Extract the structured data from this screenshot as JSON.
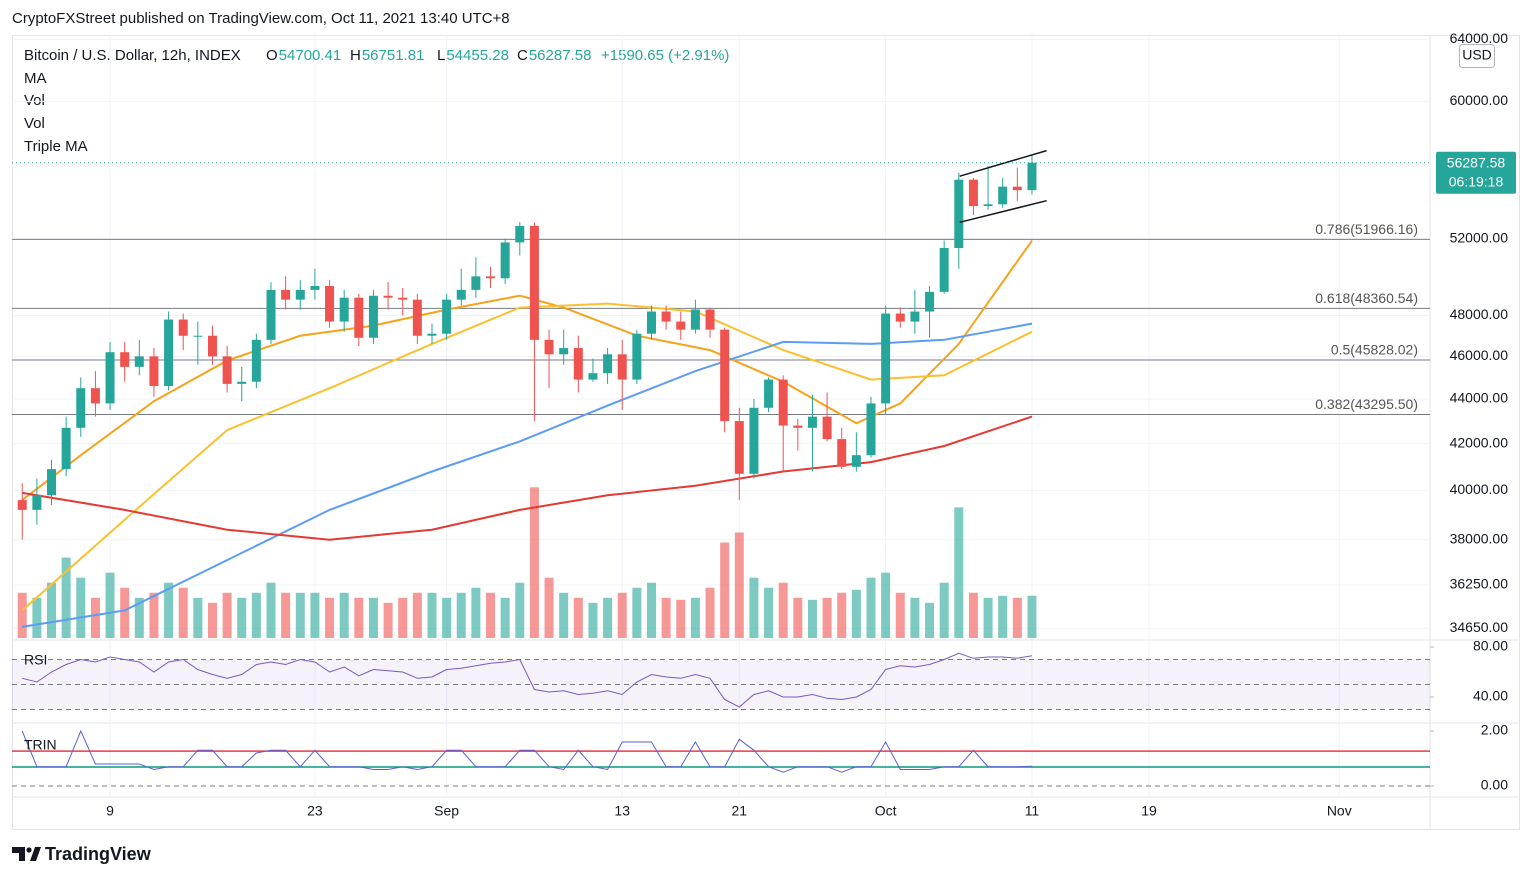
{
  "header": {
    "byline": "CryptoFXStreet published on TradingView.com, Oct 11, 2021 13:40 UTC+8"
  },
  "chart_data": [
    {
      "type": "candlestick",
      "legend": {
        "symbol": "Bitcoin / U.S. Dollar, 12h, INDEX",
        "items": [
          {
            "label": "O",
            "value": 54700.41
          },
          {
            "label": "H",
            "value": 56751.81
          },
          {
            "label": "L",
            "value": 54455.28
          },
          {
            "label": "C",
            "value": 56287.58
          }
        ],
        "change": "+1590.65 (+2.91%)"
      },
      "indicators": [
        "MA",
        "Vol",
        "Vol",
        "Triple MA"
      ],
      "unit": "USD",
      "countdown": "06:19:18",
      "log_scale": true,
      "grid": true,
      "up_color": "#26a69a",
      "down_color": "#ef5350",
      "xlim": [
        2.3,
        99.2
      ],
      "xticks": [
        9,
        23,
        {
          "value": 32,
          "label": "Sep"
        },
        {
          "value": 44,
          "label": "13"
        },
        {
          "value": 52,
          "label": "21"
        },
        {
          "value": 62,
          "label": "Oct"
        },
        {
          "value": 72,
          "label": "11"
        },
        {
          "value": 80,
          "label": "19"
        },
        {
          "value": 93,
          "label": "Nov"
        }
      ],
      "ylim": [
        34300,
        64300
      ],
      "yticks": [
        {
          "value": 64000,
          "label": "64000.00"
        },
        {
          "value": 60000,
          "label": "60000.00"
        },
        {
          "value": 52000,
          "label": "52000.00"
        },
        {
          "value": 48000,
          "label": "48000.00"
        },
        {
          "value": 46000,
          "label": "46000.00"
        },
        {
          "value": 44000,
          "label": "44000.00"
        },
        {
          "value": 42000,
          "label": "42000.00"
        },
        {
          "value": 40000,
          "label": "40000.00"
        },
        {
          "value": 38000,
          "label": "38000.00"
        },
        {
          "value": 36250,
          "label": "36250.00"
        },
        {
          "value": 34650,
          "label": "34650.00"
        }
      ],
      "x": [
        3,
        4,
        5,
        6,
        7,
        8,
        9,
        10,
        11,
        12,
        13,
        14,
        15,
        16,
        17,
        18,
        19,
        20,
        21,
        22,
        23,
        24,
        25,
        26,
        27,
        28,
        29,
        30,
        31,
        32,
        33,
        34,
        35,
        36,
        37,
        38,
        39,
        40,
        41,
        42,
        43,
        44,
        45,
        46,
        47,
        48,
        49,
        50,
        51,
        52,
        53,
        54,
        55,
        56,
        57,
        58,
        59,
        60,
        61,
        62,
        63,
        64,
        65,
        66,
        67,
        68,
        69,
        70,
        71,
        72
      ],
      "open": [
        39600,
        39200,
        39800,
        40900,
        42700,
        44500,
        43800,
        46200,
        45500,
        46000,
        44600,
        47800,
        47000,
        47000,
        46000,
        44700,
        44800,
        46800,
        49300,
        48800,
        49300,
        49500,
        47700,
        48900,
        46900,
        49000,
        48900,
        48800,
        47000,
        47100,
        48800,
        49300,
        50000,
        49900,
        51800,
        52700,
        46800,
        46100,
        46400,
        44900,
        45200,
        46100,
        44900,
        47100,
        48200,
        47700,
        47300,
        48300,
        47300,
        43000,
        40700,
        43600,
        44900,
        42800,
        42700,
        43200,
        42200,
        41000,
        41500,
        43800,
        48100,
        47700,
        48200,
        49200,
        51500,
        55300,
        53800,
        53900,
        54900,
        54700.41
      ],
      "high": [
        40300,
        40500,
        41300,
        43200,
        45000,
        45300,
        46700,
        46700,
        46800,
        46400,
        48200,
        48100,
        47700,
        47500,
        46500,
        45500,
        47100,
        49700,
        50000,
        49800,
        50400,
        49800,
        49300,
        49100,
        49300,
        49700,
        49400,
        49100,
        47600,
        49100,
        50400,
        51000,
        50500,
        52000,
        52900,
        52900,
        47300,
        47300,
        47000,
        45900,
        46400,
        46800,
        47300,
        48500,
        48500,
        48200,
        48800,
        48400,
        47400,
        43600,
        44000,
        45000,
        45100,
        43100,
        44200,
        44300,
        42700,
        42500,
        44100,
        48500,
        48400,
        49300,
        49500,
        51900,
        55700,
        55400,
        56100,
        55400,
        56000,
        56751.81
      ],
      "low": [
        38000,
        38600,
        39400,
        40600,
        42300,
        43200,
        43500,
        44800,
        45100,
        44100,
        44400,
        46300,
        45600,
        45600,
        44300,
        43900,
        44500,
        46600,
        48300,
        48300,
        48800,
        47400,
        47200,
        46500,
        46600,
        48300,
        48000,
        46600,
        46600,
        46800,
        48500,
        48900,
        49400,
        49600,
        51100,
        43000,
        44500,
        45600,
        44300,
        44800,
        44700,
        43500,
        44700,
        46800,
        47300,
        46800,
        47100,
        46900,
        42500,
        39600,
        40500,
        43400,
        40800,
        41700,
        40800,
        42100,
        40900,
        40800,
        41400,
        43300,
        47400,
        47100,
        46900,
        49100,
        50400,
        53300,
        53600,
        53700,
        54100,
        54455.28
      ],
      "close": [
        39200,
        39800,
        40900,
        42700,
        44500,
        43800,
        46200,
        45500,
        46000,
        44600,
        47800,
        47000,
        47000,
        46000,
        44700,
        44800,
        46800,
        49300,
        48800,
        49300,
        49500,
        47700,
        48900,
        46900,
        49000,
        48900,
        48800,
        47000,
        47100,
        48800,
        49300,
        50000,
        49900,
        51800,
        52700,
        46800,
        46100,
        46400,
        44900,
        45200,
        46100,
        44900,
        47100,
        48200,
        47700,
        47300,
        48300,
        47300,
        43000,
        40700,
        43600,
        44900,
        42800,
        42700,
        43200,
        42200,
        41000,
        41500,
        43800,
        48100,
        47700,
        48200,
        49200,
        51500,
        55300,
        53800,
        53900,
        54900,
        54700.41,
        56287.58
      ],
      "volume": {
        "lim": [
          0,
          600
        ],
        "values": [
          45,
          40,
          55,
          80,
          60,
          40,
          65,
          50,
          40,
          45,
          55,
          50,
          40,
          35,
          45,
          40,
          45,
          55,
          45,
          45,
          45,
          40,
          45,
          40,
          40,
          35,
          40,
          45,
          45,
          40,
          45,
          50,
          45,
          40,
          55,
          150,
          60,
          45,
          40,
          35,
          40,
          45,
          50,
          55,
          40,
          38,
          40,
          50,
          95,
          105,
          60,
          50,
          55,
          40,
          38,
          40,
          45,
          48,
          60,
          65,
          45,
          40,
          35,
          55,
          130,
          45,
          40,
          42,
          40,
          42
        ]
      },
      "ma_lines": [
        {
          "color": "#f7a21b",
          "x": [
            3,
            7,
            12,
            17,
            22,
            27,
            32,
            37,
            40,
            45,
            50,
            55,
            60,
            63,
            67,
            72
          ],
          "values": [
            39600,
            41500,
            43900,
            45800,
            47000,
            47500,
            48300,
            49000,
            48400,
            47000,
            46300,
            44800,
            42900,
            43800,
            46600,
            51900
          ]
        },
        {
          "color": "#fbc02d",
          "x": [
            3,
            10,
            17,
            24,
            31,
            37,
            43,
            49,
            55,
            61,
            66,
            72
          ],
          "values": [
            35300,
            38800,
            42600,
            44500,
            46600,
            48400,
            48600,
            48200,
            46300,
            44900,
            45100,
            47200
          ]
        },
        {
          "color": "#5b9cf6",
          "x": [
            3,
            10,
            17,
            24,
            31,
            37,
            43,
            49,
            55,
            61,
            66,
            72
          ],
          "values": [
            34700,
            35300,
            37200,
            39200,
            40800,
            42100,
            43700,
            45300,
            46700,
            46600,
            46800,
            47600
          ]
        },
        {
          "color": "#e53935",
          "x": [
            3,
            10,
            17,
            24,
            31,
            37,
            43,
            49,
            55,
            61,
            66,
            72
          ],
          "values": [
            39900,
            39200,
            38400,
            38000,
            38400,
            39200,
            39800,
            40200,
            40800,
            41200,
            41900,
            43200
          ]
        }
      ],
      "fib_levels": [
        {
          "value": 51966.16,
          "label": "0.786(51966.16)"
        },
        {
          "value": 48360.54,
          "label": "0.618(48360.54)"
        },
        {
          "value": 45828.02,
          "label": "0.5(45828.02)"
        },
        {
          "value": 43295.5,
          "label": "0.382(43295.50)"
        }
      ],
      "channel": [
        {
          "x": [
            67.06,
            73.0
          ],
          "values": [
            55500,
            57000
          ]
        },
        {
          "x": [
            67.06,
            73.0
          ],
          "values": [
            52900,
            54100
          ]
        }
      ]
    },
    {
      "type": "line",
      "title": "RSI",
      "color": "#7e57c2",
      "ylim": [
        20,
        85.6
      ],
      "yticks": [
        {
          "value": 80,
          "label": "80.00"
        },
        {
          "value": 40,
          "label": "40.00"
        }
      ],
      "band": [
        30,
        70
      ],
      "levels": [
        70,
        50,
        30
      ],
      "values": [
        55,
        52,
        60,
        66,
        70,
        68,
        72,
        70,
        68,
        60,
        68,
        70,
        62,
        58,
        55,
        58,
        66,
        68,
        66,
        70,
        68,
        60,
        64,
        57,
        62,
        61,
        60,
        55,
        56,
        62,
        63,
        65,
        67,
        68,
        70,
        46,
        44,
        45,
        42,
        43,
        45,
        42,
        52,
        58,
        56,
        55,
        58,
        55,
        38,
        32,
        42,
        45,
        40,
        40,
        42,
        39,
        38,
        40,
        46,
        62,
        65,
        64,
        66,
        70,
        75,
        71,
        72,
        72,
        71,
        73
      ]
    },
    {
      "type": "line",
      "title": "TRIN",
      "color": "#5b5fd6",
      "ylim": [
        -0.33,
        2.22
      ],
      "yticks": [
        {
          "value": 2,
          "label": "2.00"
        },
        {
          "value": 0,
          "label": "0.00"
        }
      ],
      "levels": [
        0
      ],
      "ref_lines": [
        {
          "value": 1.27,
          "color": "#f23645"
        },
        {
          "value": 0.69,
          "color": "#089981"
        }
      ],
      "values": [
        2,
        0.7,
        0.7,
        0.7,
        2,
        0.8,
        0.8,
        0.8,
        0.8,
        0.6,
        0.7,
        0.7,
        1.3,
        1.3,
        0.7,
        0.7,
        1.2,
        1.3,
        1.3,
        0.7,
        1.3,
        0.7,
        0.7,
        0.7,
        0.6,
        0.6,
        0.7,
        0.6,
        0.7,
        1.3,
        1.3,
        0.7,
        0.7,
        0.7,
        1.3,
        1.3,
        0.7,
        0.6,
        1.3,
        0.7,
        0.6,
        1.6,
        1.6,
        1.6,
        0.7,
        0.7,
        1.6,
        0.7,
        0.7,
        1.7,
        1.3,
        0.7,
        0.5,
        0.7,
        0.7,
        0.7,
        0.5,
        0.7,
        0.7,
        1.6,
        0.6,
        0.6,
        0.6,
        0.7,
        0.7,
        1.3,
        0.7,
        0.7,
        0.7,
        0.72
      ]
    }
  ],
  "footer": {
    "brand": "TradingView"
  }
}
